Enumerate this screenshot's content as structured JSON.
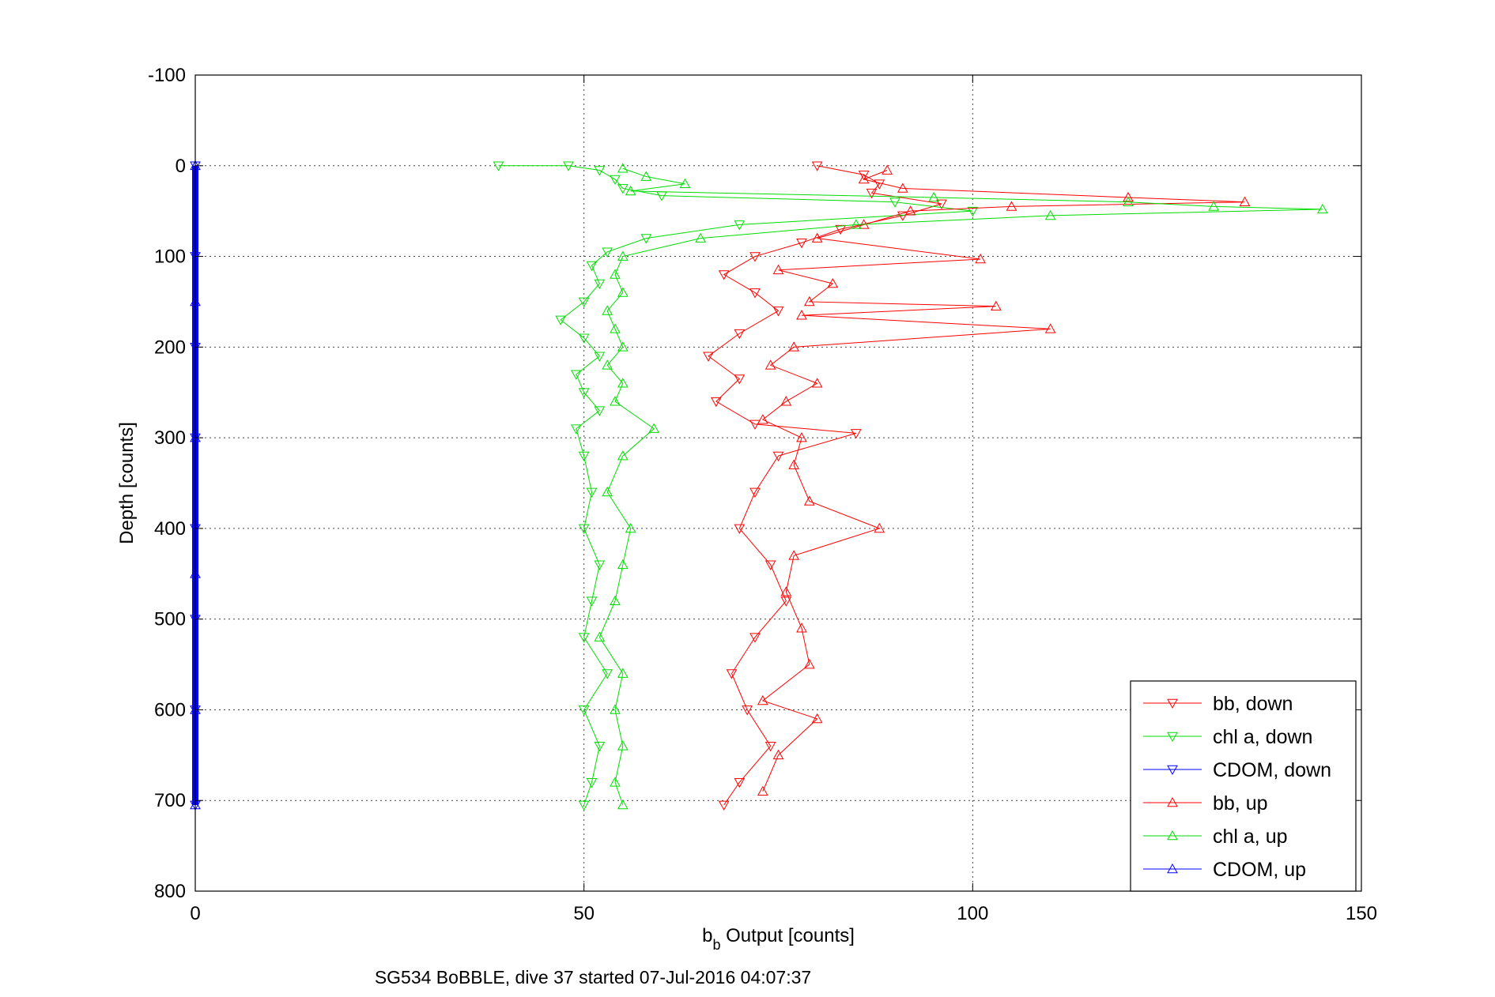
{
  "chart_data": {
    "type": "scatter",
    "xlabel_main": "b",
    "xlabel_sub": "b",
    "xlabel_rest": " Output [counts]",
    "ylabel": "Depth [counts]",
    "caption": "SG534 BoBBLE, dive 37 started 07-Jul-2016 04:07:37",
    "xlim": [
      0,
      150
    ],
    "ylim": [
      -100,
      800
    ],
    "y_reversed": true,
    "grid": true,
    "x_ticks": [
      "0",
      "50",
      "100",
      "150"
    ],
    "y_ticks": [
      "-100",
      "0",
      "100",
      "200",
      "300",
      "400",
      "500",
      "600",
      "700",
      "800"
    ],
    "legend_position": "bottom-right",
    "series": [
      {
        "name": "bb, down",
        "color": "#ff0000",
        "marker": "triangle-down",
        "direction": "down",
        "points": [
          [
            80,
            0
          ],
          [
            86,
            10
          ],
          [
            88,
            20
          ],
          [
            87,
            30
          ],
          [
            96,
            42
          ],
          [
            91,
            55
          ],
          [
            83,
            70
          ],
          [
            78,
            85
          ],
          [
            72,
            100
          ],
          [
            68,
            120
          ],
          [
            72,
            140
          ],
          [
            75,
            160
          ],
          [
            70,
            185
          ],
          [
            66,
            210
          ],
          [
            70,
            235
          ],
          [
            67,
            260
          ],
          [
            72,
            285
          ],
          [
            85,
            295
          ],
          [
            75,
            320
          ],
          [
            72,
            360
          ],
          [
            70,
            400
          ],
          [
            74,
            440
          ],
          [
            76,
            480
          ],
          [
            72,
            520
          ],
          [
            69,
            560
          ],
          [
            71,
            600
          ],
          [
            74,
            640
          ],
          [
            70,
            680
          ],
          [
            68,
            705
          ]
        ]
      },
      {
        "name": "chl a, down",
        "color": "#00dd00",
        "marker": "triangle-down",
        "direction": "down",
        "points": [
          [
            39,
            0
          ],
          [
            48,
            0
          ],
          [
            52,
            5
          ],
          [
            54,
            15
          ],
          [
            55,
            25
          ],
          [
            60,
            33
          ],
          [
            90,
            40
          ],
          [
            100,
            50
          ],
          [
            70,
            65
          ],
          [
            58,
            80
          ],
          [
            53,
            95
          ],
          [
            51,
            110
          ],
          [
            52,
            130
          ],
          [
            50,
            150
          ],
          [
            47,
            170
          ],
          [
            50,
            190
          ],
          [
            52,
            210
          ],
          [
            49,
            230
          ],
          [
            50,
            250
          ],
          [
            52,
            270
          ],
          [
            49,
            290
          ],
          [
            50,
            320
          ],
          [
            51,
            360
          ],
          [
            50,
            400
          ],
          [
            52,
            440
          ],
          [
            51,
            480
          ],
          [
            50,
            520
          ],
          [
            53,
            560
          ],
          [
            50,
            600
          ],
          [
            52,
            640
          ],
          [
            51,
            680
          ],
          [
            50,
            705
          ]
        ]
      },
      {
        "name": "CDOM, down",
        "color": "#0000ff",
        "marker": "triangle-down",
        "direction": "down",
        "points": [
          [
            0,
            0
          ],
          [
            0,
            100
          ],
          [
            0,
            200
          ],
          [
            0,
            300
          ],
          [
            0,
            400
          ],
          [
            0,
            500
          ],
          [
            0,
            600
          ],
          [
            0,
            705
          ]
        ]
      },
      {
        "name": "bb, up",
        "color": "#ff0000",
        "marker": "triangle-up",
        "direction": "up",
        "points": [
          [
            89,
            5
          ],
          [
            86,
            15
          ],
          [
            91,
            25
          ],
          [
            120,
            35
          ],
          [
            135,
            40
          ],
          [
            105,
            45
          ],
          [
            92,
            50
          ],
          [
            86,
            65
          ],
          [
            80,
            80
          ],
          [
            101,
            103
          ],
          [
            75,
            115
          ],
          [
            82,
            130
          ],
          [
            79,
            150
          ],
          [
            103,
            155
          ],
          [
            78,
            165
          ],
          [
            110,
            180
          ],
          [
            77,
            200
          ],
          [
            74,
            220
          ],
          [
            80,
            240
          ],
          [
            76,
            260
          ],
          [
            73,
            280
          ],
          [
            78,
            300
          ],
          [
            77,
            330
          ],
          [
            79,
            370
          ],
          [
            88,
            400
          ],
          [
            77,
            430
          ],
          [
            76,
            470
          ],
          [
            78,
            510
          ],
          [
            79,
            550
          ],
          [
            73,
            590
          ],
          [
            80,
            610
          ],
          [
            75,
            650
          ],
          [
            73,
            690
          ]
        ]
      },
      {
        "name": "chl a, up",
        "color": "#00dd00",
        "marker": "triangle-up",
        "direction": "up",
        "points": [
          [
            55,
            3
          ],
          [
            58,
            12
          ],
          [
            63,
            20
          ],
          [
            56,
            28
          ],
          [
            95,
            35
          ],
          [
            120,
            40
          ],
          [
            131,
            45
          ],
          [
            145,
            48
          ],
          [
            110,
            55
          ],
          [
            85,
            65
          ],
          [
            65,
            80
          ],
          [
            55,
            100
          ],
          [
            54,
            120
          ],
          [
            55,
            140
          ],
          [
            53,
            160
          ],
          [
            54,
            180
          ],
          [
            55,
            200
          ],
          [
            53,
            220
          ],
          [
            55,
            240
          ],
          [
            54,
            260
          ],
          [
            59,
            290
          ],
          [
            55,
            320
          ],
          [
            53,
            360
          ],
          [
            56,
            400
          ],
          [
            55,
            440
          ],
          [
            54,
            480
          ],
          [
            52,
            520
          ],
          [
            55,
            560
          ],
          [
            54,
            600
          ],
          [
            55,
            640
          ],
          [
            54,
            680
          ],
          [
            55,
            705
          ]
        ]
      },
      {
        "name": "CDOM, up",
        "color": "#0000ff",
        "marker": "triangle-up",
        "direction": "up",
        "points": [
          [
            0,
            0
          ],
          [
            0,
            150
          ],
          [
            0,
            300
          ],
          [
            0,
            450
          ],
          [
            0,
            600
          ],
          [
            0,
            705
          ]
        ]
      }
    ]
  }
}
